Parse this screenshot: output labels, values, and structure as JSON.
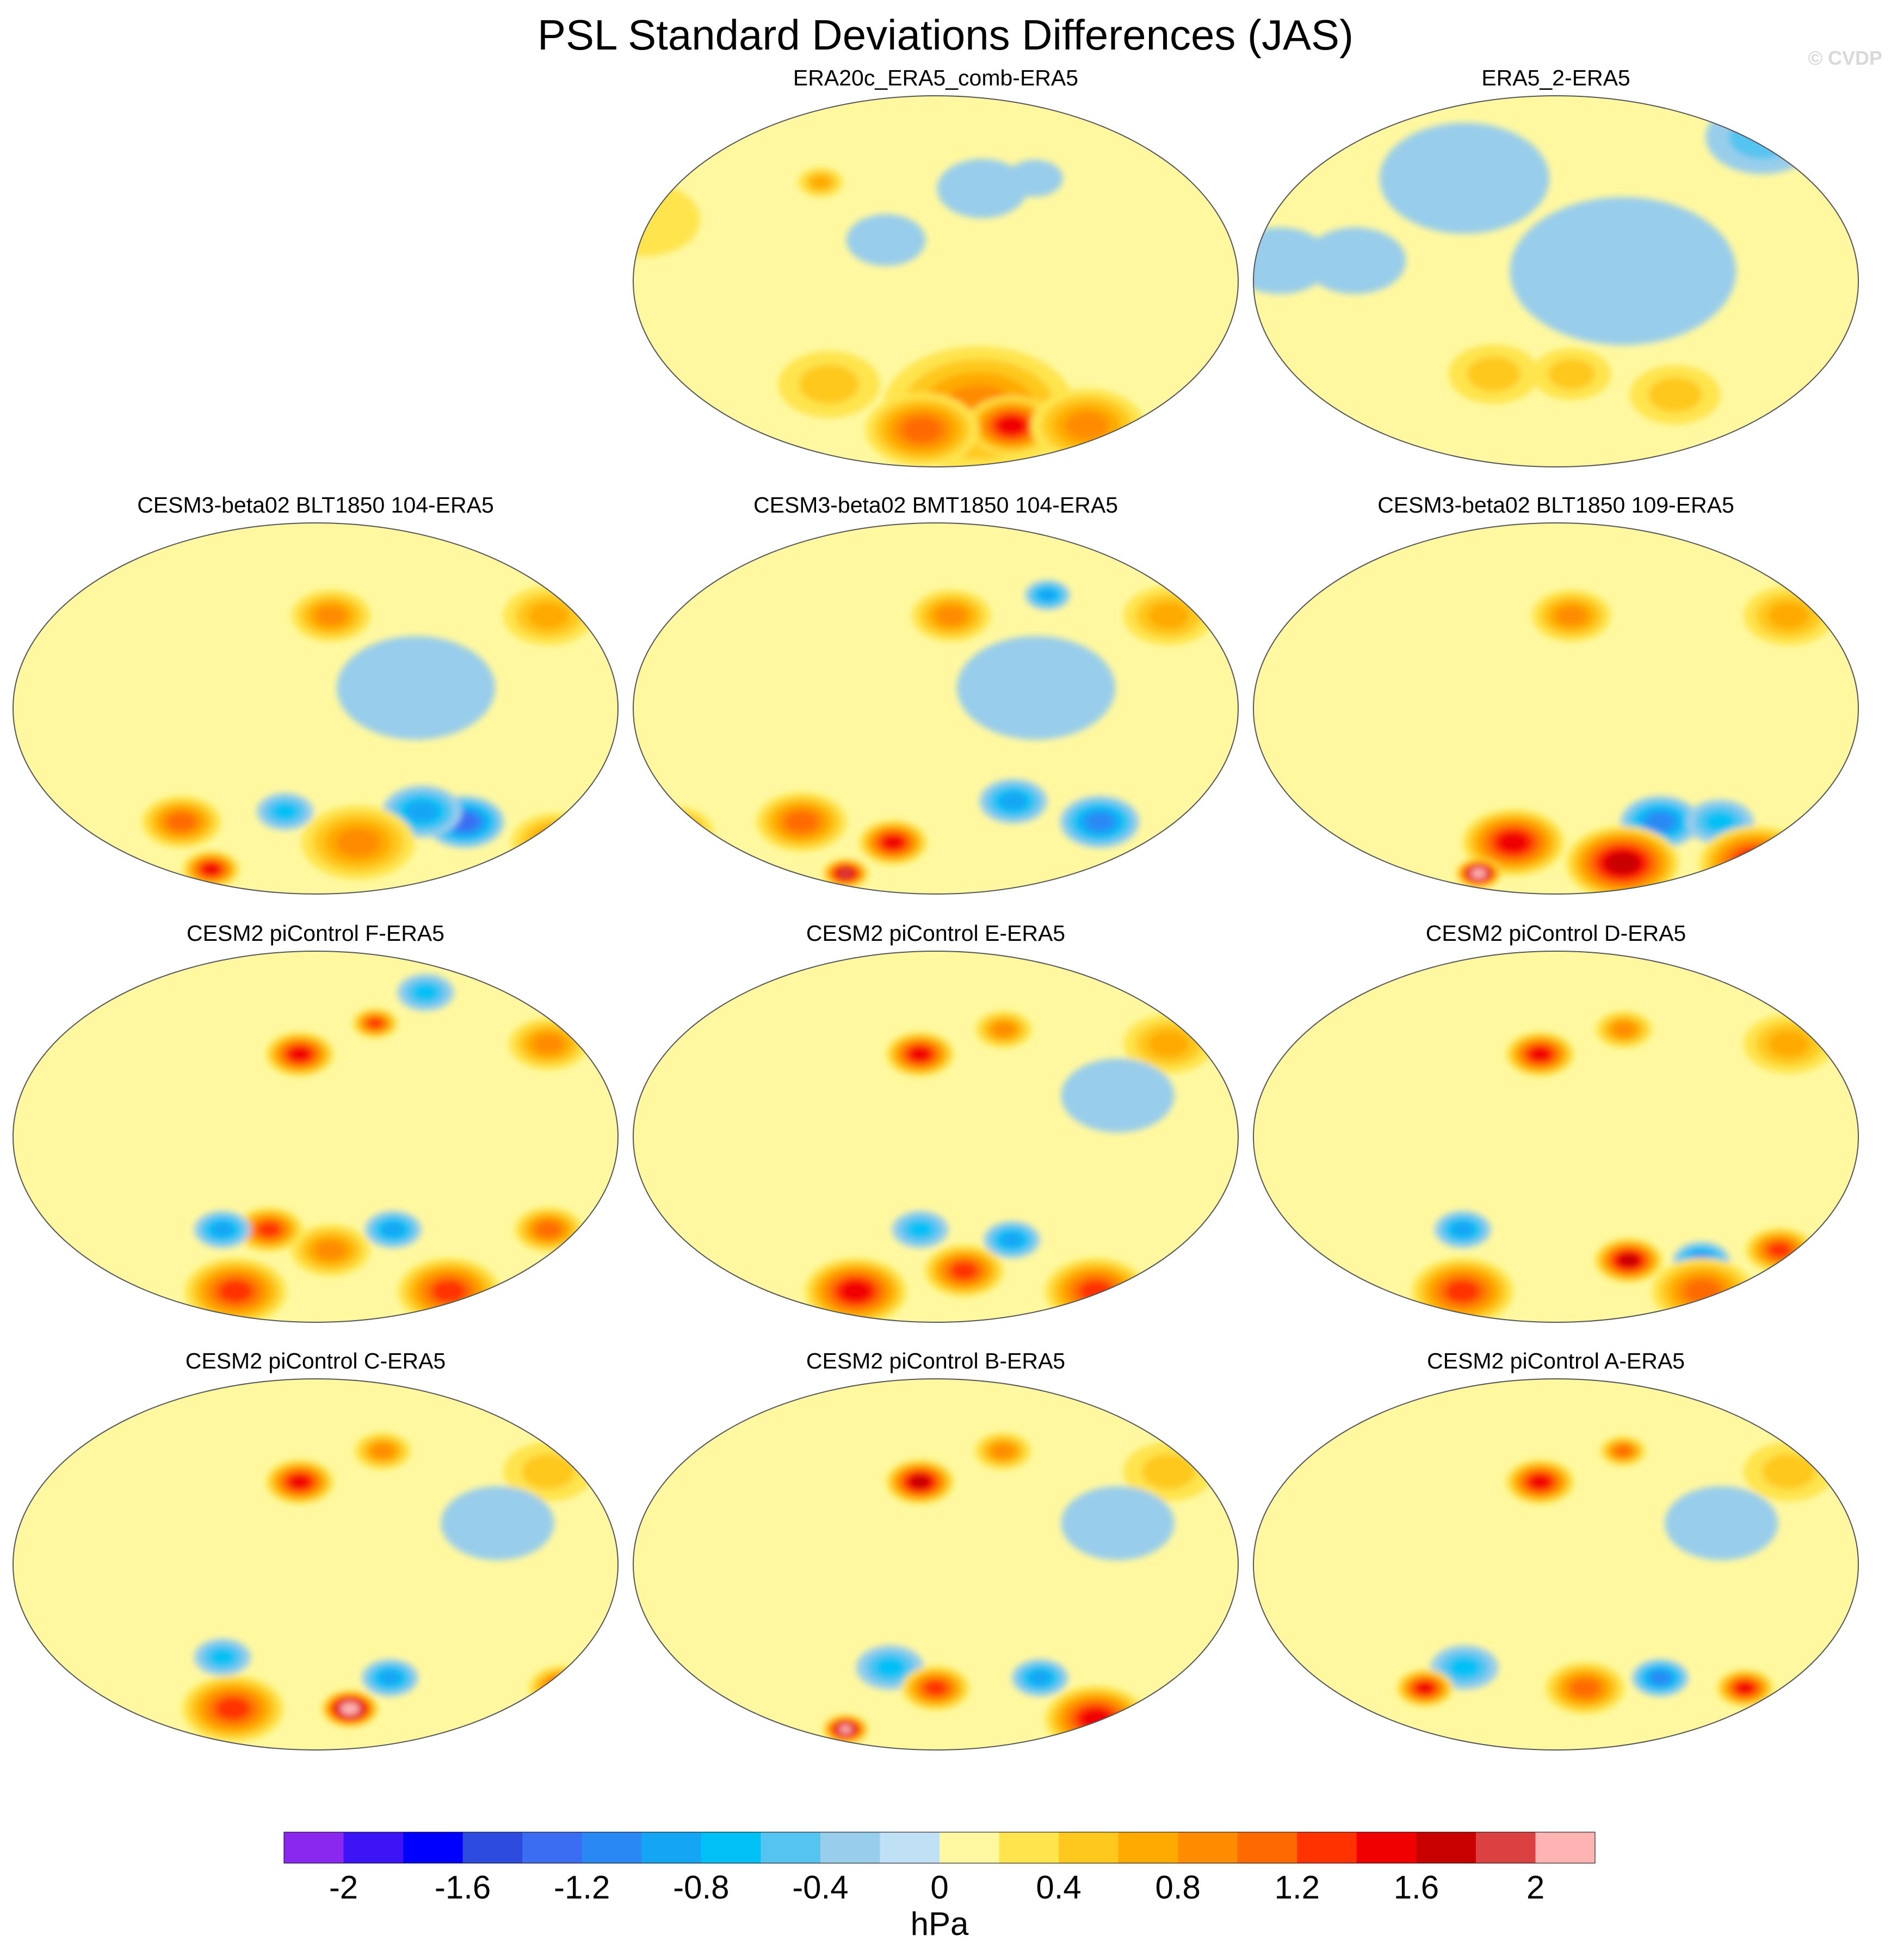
{
  "title": "PSL Standard Deviations Differences (JAS)",
  "copyright": "© CVDP",
  "chart_data": {
    "type": "heatmap",
    "title": "PSL Standard Deviations Differences (JAS)",
    "projection": "Robinson (global, Pacific-centered)",
    "variable": "PSL standard deviation difference",
    "season": "JAS",
    "units": "hPa",
    "colorbar": {
      "label": "hPa",
      "levels": [
        -2.2,
        -2.0,
        -1.8,
        -1.6,
        -1.4,
        -1.2,
        -1.0,
        -0.8,
        -0.6,
        -0.4,
        -0.2,
        0,
        0.2,
        0.4,
        0.6,
        0.8,
        1.0,
        1.2,
        1.4,
        1.6,
        1.8,
        2.0,
        2.2
      ],
      "tick_labels": [
        "-2",
        "-1.6",
        "-1.2",
        "-0.8",
        "-0.4",
        "0",
        "0.4",
        "0.8",
        "1.2",
        "1.6",
        "2"
      ],
      "tick_values": [
        -2,
        -1.6,
        -1.2,
        -0.8,
        -0.4,
        0,
        0.4,
        0.8,
        1.2,
        1.6,
        2
      ],
      "colors": [
        "#8b28f0",
        "#3c14f5",
        "#0000ff",
        "#2e4be0",
        "#3b6df2",
        "#2a88f5",
        "#14a5f5",
        "#00c0f5",
        "#55c4f0",
        "#98cdeb",
        "#c0e1f5",
        "#fff8a0",
        "#ffe44d",
        "#ffc81e",
        "#ffaa00",
        "#ff8c00",
        "#ff6a00",
        "#ff3200",
        "#f00000",
        "#c80000",
        "#dc4141",
        "#ffb4b4"
      ]
    },
    "panels": [
      {
        "name": "ERA20c_ERA5_comb-ERA5",
        "row": 0,
        "col": 1,
        "pattern": "weak",
        "features": [
          {
            "lon": 75,
            "lat": 48,
            "value": 0.6,
            "size": 8
          },
          {
            "lon": 180,
            "lat": -62,
            "value": 0.9,
            "size": 34
          },
          {
            "lon": 205,
            "lat": -70,
            "value": 1.4,
            "size": 16
          },
          {
            "lon": 140,
            "lat": -72,
            "value": 1.0,
            "size": 20
          },
          {
            "lon": 260,
            "lat": -70,
            "value": 0.8,
            "size": 20
          },
          {
            "lon": 80,
            "lat": -50,
            "value": 0.5,
            "size": 18
          },
          {
            "lon": 120,
            "lat": 20,
            "value": -0.2,
            "size": 14
          },
          {
            "lon": 180,
            "lat": 45,
            "value": -0.2,
            "size": 16
          },
          {
            "lon": 215,
            "lat": 50,
            "value": -0.3,
            "size": 10
          },
          {
            "lon": 330,
            "lat": 30,
            "value": 0.3,
            "size": 20
          }
        ]
      },
      {
        "name": "ERA5_2-ERA5",
        "row": 0,
        "col": 2,
        "pattern": "mixed",
        "features": [
          {
            "lon": 190,
            "lat": 5,
            "value": -0.2,
            "size": 40
          },
          {
            "lon": 90,
            "lat": 50,
            "value": -0.3,
            "size": 30
          },
          {
            "lon": 300,
            "lat": 70,
            "value": -0.4,
            "size": 20
          },
          {
            "lon": 110,
            "lat": -45,
            "value": 0.5,
            "size": 16
          },
          {
            "lon": 160,
            "lat": -45,
            "value": 0.4,
            "size": 14
          },
          {
            "lon": 230,
            "lat": -55,
            "value": 0.5,
            "size": 16
          },
          {
            "lon": 345,
            "lat": 10,
            "value": -0.3,
            "size": 18
          },
          {
            "lon": 30,
            "lat": 10,
            "value": -0.3,
            "size": 18
          }
        ]
      },
      {
        "name": "CESM3-beta02 BLT1850 104-ERA5",
        "row": 1,
        "col": 0,
        "pattern": "strong",
        "features": [
          {
            "lon": 160,
            "lat": 45,
            "value": 0.9,
            "size": 14
          },
          {
            "lon": 300,
            "lat": 45,
            "value": 0.7,
            "size": 16
          },
          {
            "lon": 210,
            "lat": 10,
            "value": -0.2,
            "size": 28
          },
          {
            "lon": 250,
            "lat": -55,
            "value": -1.2,
            "size": 14
          },
          {
            "lon": 220,
            "lat": -50,
            "value": -0.8,
            "size": 14
          },
          {
            "lon": 130,
            "lat": -50,
            "value": -0.7,
            "size": 10
          },
          {
            "lon": 60,
            "lat": -55,
            "value": 1.1,
            "size": 14
          },
          {
            "lon": 180,
            "lat": -65,
            "value": 0.9,
            "size": 20
          },
          {
            "lon": 320,
            "lat": -65,
            "value": 0.8,
            "size": 16
          },
          {
            "lon": 70,
            "lat": -78,
            "value": 1.5,
            "size": 10
          }
        ]
      },
      {
        "name": "CESM3-beta02 BMT1850 104-ERA5",
        "row": 1,
        "col": 1,
        "pattern": "strong",
        "features": [
          {
            "lon": 160,
            "lat": 45,
            "value": 0.9,
            "size": 14
          },
          {
            "lon": 225,
            "lat": 55,
            "value": -0.9,
            "size": 8
          },
          {
            "lon": 300,
            "lat": 45,
            "value": 0.7,
            "size": 16
          },
          {
            "lon": 210,
            "lat": 10,
            "value": -0.2,
            "size": 28
          },
          {
            "lon": 260,
            "lat": -55,
            "value": -1.1,
            "size": 14
          },
          {
            "lon": 200,
            "lat": -45,
            "value": -0.8,
            "size": 12
          },
          {
            "lon": 60,
            "lat": -55,
            "value": 1.0,
            "size": 16
          },
          {
            "lon": 120,
            "lat": -65,
            "value": 1.4,
            "size": 12
          },
          {
            "lon": 330,
            "lat": -60,
            "value": 0.9,
            "size": 14
          },
          {
            "lon": 80,
            "lat": -80,
            "value": 1.8,
            "size": 8
          }
        ]
      },
      {
        "name": "CESM3-beta02 BLT1850 109-ERA5",
        "row": 1,
        "col": 2,
        "pattern": "strong",
        "features": [
          {
            "lon": 160,
            "lat": 45,
            "value": 0.9,
            "size": 14
          },
          {
            "lon": 300,
            "lat": 45,
            "value": 0.7,
            "size": 16
          },
          {
            "lon": 220,
            "lat": -55,
            "value": -1.0,
            "size": 14
          },
          {
            "lon": 260,
            "lat": -55,
            "value": -0.7,
            "size": 12
          },
          {
            "lon": 120,
            "lat": -65,
            "value": 1.4,
            "size": 18
          },
          {
            "lon": 200,
            "lat": -75,
            "value": 1.6,
            "size": 20
          },
          {
            "lon": 300,
            "lat": -75,
            "value": 1.5,
            "size": 20
          },
          {
            "lon": 90,
            "lat": -80,
            "value": 2.2,
            "size": 8
          },
          {
            "lon": 340,
            "lat": -80,
            "value": 2.1,
            "size": 6
          }
        ]
      },
      {
        "name": "CESM2 piControl F-ERA5",
        "row": 2,
        "col": 0,
        "pattern": "strong",
        "features": [
          {
            "lon": 140,
            "lat": 40,
            "value": 1.5,
            "size": 12
          },
          {
            "lon": 190,
            "lat": 55,
            "value": 1.2,
            "size": 8
          },
          {
            "lon": 300,
            "lat": 45,
            "value": 0.8,
            "size": 14
          },
          {
            "lon": 230,
            "lat": 70,
            "value": -0.6,
            "size": 10
          },
          {
            "lon": 120,
            "lat": -45,
            "value": 1.2,
            "size": 12
          },
          {
            "lon": 90,
            "lat": -45,
            "value": -0.8,
            "size": 10
          },
          {
            "lon": 200,
            "lat": -45,
            "value": -0.9,
            "size": 10
          },
          {
            "lon": 160,
            "lat": -55,
            "value": 0.9,
            "size": 14
          },
          {
            "lon": 300,
            "lat": -45,
            "value": 1.0,
            "size": 12
          },
          {
            "lon": 90,
            "lat": -75,
            "value": 1.3,
            "size": 18
          },
          {
            "lon": 250,
            "lat": -75,
            "value": 1.2,
            "size": 18
          }
        ]
      },
      {
        "name": "CESM2 piControl E-ERA5",
        "row": 2,
        "col": 1,
        "pattern": "strong",
        "features": [
          {
            "lon": 140,
            "lat": 40,
            "value": 1.4,
            "size": 12
          },
          {
            "lon": 195,
            "lat": 52,
            "value": 0.8,
            "size": 10
          },
          {
            "lon": 300,
            "lat": 45,
            "value": 0.6,
            "size": 16
          },
          {
            "lon": 260,
            "lat": 20,
            "value": -0.3,
            "size": 20
          },
          {
            "lon": 140,
            "lat": -45,
            "value": -0.7,
            "size": 10
          },
          {
            "lon": 200,
            "lat": -50,
            "value": -0.8,
            "size": 10
          },
          {
            "lon": 170,
            "lat": -65,
            "value": 1.3,
            "size": 14
          },
          {
            "lon": 90,
            "lat": -75,
            "value": 1.4,
            "size": 18
          },
          {
            "lon": 270,
            "lat": -75,
            "value": 1.3,
            "size": 18
          }
        ]
      },
      {
        "name": "CESM2 piControl D-ERA5",
        "row": 2,
        "col": 2,
        "pattern": "strong",
        "features": [
          {
            "lon": 140,
            "lat": 40,
            "value": 1.4,
            "size": 12
          },
          {
            "lon": 195,
            "lat": 52,
            "value": 0.9,
            "size": 10
          },
          {
            "lon": 300,
            "lat": 45,
            "value": 0.6,
            "size": 16
          },
          {
            "lon": 90,
            "lat": -45,
            "value": -0.9,
            "size": 10
          },
          {
            "lon": 200,
            "lat": -60,
            "value": 1.6,
            "size": 12
          },
          {
            "lon": 250,
            "lat": -60,
            "value": -1.0,
            "size": 10
          },
          {
            "lon": 300,
            "lat": -55,
            "value": 1.2,
            "size": 12
          },
          {
            "lon": 80,
            "lat": -75,
            "value": 1.2,
            "size": 18
          },
          {
            "lon": 260,
            "lat": -75,
            "value": 1.0,
            "size": 18
          }
        ]
      },
      {
        "name": "CESM2 piControl C-ERA5",
        "row": 3,
        "col": 0,
        "pattern": "strong",
        "features": [
          {
            "lon": 140,
            "lat": 40,
            "value": 1.5,
            "size": 12
          },
          {
            "lon": 195,
            "lat": 55,
            "value": 0.9,
            "size": 10
          },
          {
            "lon": 300,
            "lat": 45,
            "value": 0.5,
            "size": 16
          },
          {
            "lon": 260,
            "lat": 20,
            "value": -0.3,
            "size": 20
          },
          {
            "lon": 90,
            "lat": -45,
            "value": -0.6,
            "size": 10
          },
          {
            "lon": 200,
            "lat": -55,
            "value": -0.9,
            "size": 10
          },
          {
            "lon": 175,
            "lat": -70,
            "value": 2.2,
            "size": 10
          },
          {
            "lon": 90,
            "lat": -70,
            "value": 1.2,
            "size": 18
          },
          {
            "lon": 320,
            "lat": -60,
            "value": 1.3,
            "size": 12
          }
        ]
      },
      {
        "name": "CESM2 piControl B-ERA5",
        "row": 3,
        "col": 1,
        "pattern": "strong",
        "features": [
          {
            "lon": 140,
            "lat": 40,
            "value": 1.6,
            "size": 12
          },
          {
            "lon": 195,
            "lat": 55,
            "value": 0.9,
            "size": 10
          },
          {
            "lon": 300,
            "lat": 45,
            "value": 0.5,
            "size": 16
          },
          {
            "lon": 260,
            "lat": 20,
            "value": -0.3,
            "size": 20
          },
          {
            "lon": 120,
            "lat": -50,
            "value": -0.6,
            "size": 12
          },
          {
            "lon": 220,
            "lat": -55,
            "value": -0.8,
            "size": 10
          },
          {
            "lon": 150,
            "lat": -60,
            "value": 1.2,
            "size": 12
          },
          {
            "lon": 80,
            "lat": -80,
            "value": 2.1,
            "size": 8
          },
          {
            "lon": 270,
            "lat": -75,
            "value": 1.4,
            "size": 18
          }
        ]
      },
      {
        "name": "CESM2 piControl A-ERA5",
        "row": 3,
        "col": 2,
        "pattern": "strong",
        "features": [
          {
            "lon": 140,
            "lat": 40,
            "value": 1.4,
            "size": 12
          },
          {
            "lon": 195,
            "lat": 55,
            "value": 1.0,
            "size": 8
          },
          {
            "lon": 300,
            "lat": 45,
            "value": 0.5,
            "size": 16
          },
          {
            "lon": 250,
            "lat": 20,
            "value": -0.3,
            "size": 20
          },
          {
            "lon": 90,
            "lat": -50,
            "value": -0.7,
            "size": 12
          },
          {
            "lon": 220,
            "lat": -55,
            "value": -1.0,
            "size": 10
          },
          {
            "lon": 60,
            "lat": -60,
            "value": 1.4,
            "size": 10
          },
          {
            "lon": 280,
            "lat": -60,
            "value": 1.4,
            "size": 10
          },
          {
            "lon": 170,
            "lat": -60,
            "value": 1.0,
            "size": 14
          }
        ]
      }
    ]
  }
}
